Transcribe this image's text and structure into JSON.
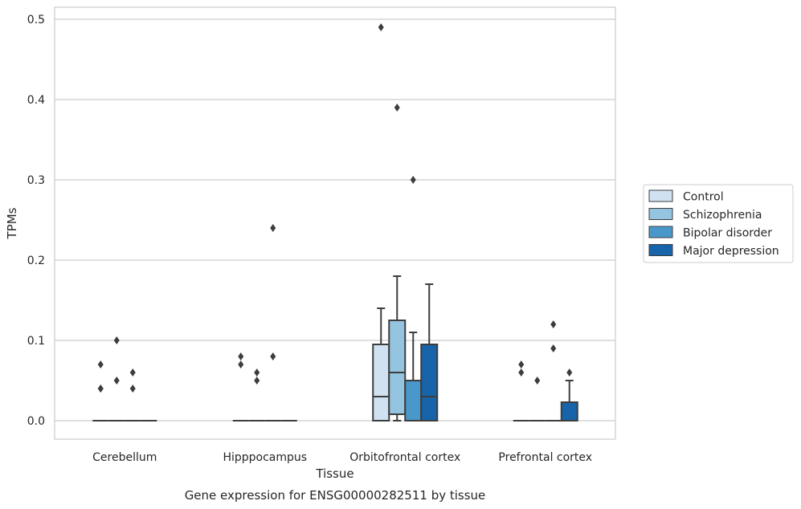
{
  "chart_data": {
    "type": "box",
    "title": "",
    "caption": "Gene expression for ENSG00000282511 by tissue",
    "xlabel": "Tissue",
    "ylabel": "TPMs",
    "ylim": [
      -0.023,
      0.515
    ],
    "yticks": [
      "0.0",
      "0.1",
      "0.2",
      "0.3",
      "0.4",
      "0.5"
    ],
    "ytick_values": [
      0,
      0.1,
      0.2,
      0.3,
      0.4,
      0.5
    ],
    "grid": true,
    "legend_position": "right",
    "categories": [
      "Cerebellum",
      "Hipppocampus",
      "Orbitofrontal cortex",
      "Prefrontal cortex"
    ],
    "series": [
      {
        "name": "Control",
        "color": "#d0e1f2",
        "boxes": [
          {
            "q1": 0,
            "median": 0,
            "q3": 0,
            "whisker_low": 0,
            "whisker_high": 0,
            "outliers": [
              0.07,
              0.04,
              0.04
            ]
          },
          {
            "q1": 0,
            "median": 0,
            "q3": 0,
            "whisker_low": 0,
            "whisker_high": 0,
            "outliers": [
              0.08,
              0.07
            ]
          },
          {
            "q1": 0,
            "median": 0.03,
            "q3": 0.095,
            "whisker_low": 0,
            "whisker_high": 0.14,
            "outliers": [
              0.49
            ]
          },
          {
            "q1": 0,
            "median": 0,
            "q3": 0,
            "whisker_low": 0,
            "whisker_high": 0,
            "outliers": [
              0.07,
              0.06
            ]
          }
        ]
      },
      {
        "name": "Schizophrenia",
        "color": "#94c4df",
        "boxes": [
          {
            "q1": 0,
            "median": 0,
            "q3": 0,
            "whisker_low": 0,
            "whisker_high": 0,
            "outliers": [
              0.1,
              0.05
            ]
          },
          {
            "q1": 0,
            "median": 0,
            "q3": 0,
            "whisker_low": 0,
            "whisker_high": 0,
            "outliers": [
              0.06,
              0.05
            ]
          },
          {
            "q1": 0.008,
            "median": 0.06,
            "q3": 0.125,
            "whisker_low": 0,
            "whisker_high": 0.18,
            "outliers": [
              0.39
            ]
          },
          {
            "q1": 0,
            "median": 0,
            "q3": 0,
            "whisker_low": 0,
            "whisker_high": 0,
            "outliers": [
              0.05
            ]
          }
        ]
      },
      {
        "name": "Bipolar disorder",
        "color": "#4a98c9",
        "boxes": [
          {
            "q1": 0,
            "median": 0,
            "q3": 0,
            "whisker_low": 0,
            "whisker_high": 0,
            "outliers": [
              0.06,
              0.04
            ]
          },
          {
            "q1": 0,
            "median": 0,
            "q3": 0,
            "whisker_low": 0,
            "whisker_high": 0,
            "outliers": [
              0.24,
              0.08
            ]
          },
          {
            "q1": 0,
            "median": 0,
            "q3": 0.05,
            "whisker_low": 0,
            "whisker_high": 0.11,
            "outliers": [
              0.3
            ]
          },
          {
            "q1": 0,
            "median": 0,
            "q3": 0,
            "whisker_low": 0,
            "whisker_high": 0,
            "outliers": [
              0.12,
              0.09
            ]
          }
        ]
      },
      {
        "name": "Major depression",
        "color": "#1764ab",
        "boxes": [
          {
            "q1": 0,
            "median": 0,
            "q3": 0,
            "whisker_low": 0,
            "whisker_high": 0,
            "outliers": []
          },
          {
            "q1": 0,
            "median": 0,
            "q3": 0,
            "whisker_low": 0,
            "whisker_high": 0,
            "outliers": []
          },
          {
            "q1": 0,
            "median": 0.03,
            "q3": 0.095,
            "whisker_low": 0,
            "whisker_high": 0.17,
            "outliers": []
          },
          {
            "q1": 0,
            "median": 0,
            "q3": 0.023,
            "whisker_low": 0,
            "whisker_high": 0.05,
            "outliers": [
              0.06
            ]
          }
        ]
      }
    ]
  }
}
